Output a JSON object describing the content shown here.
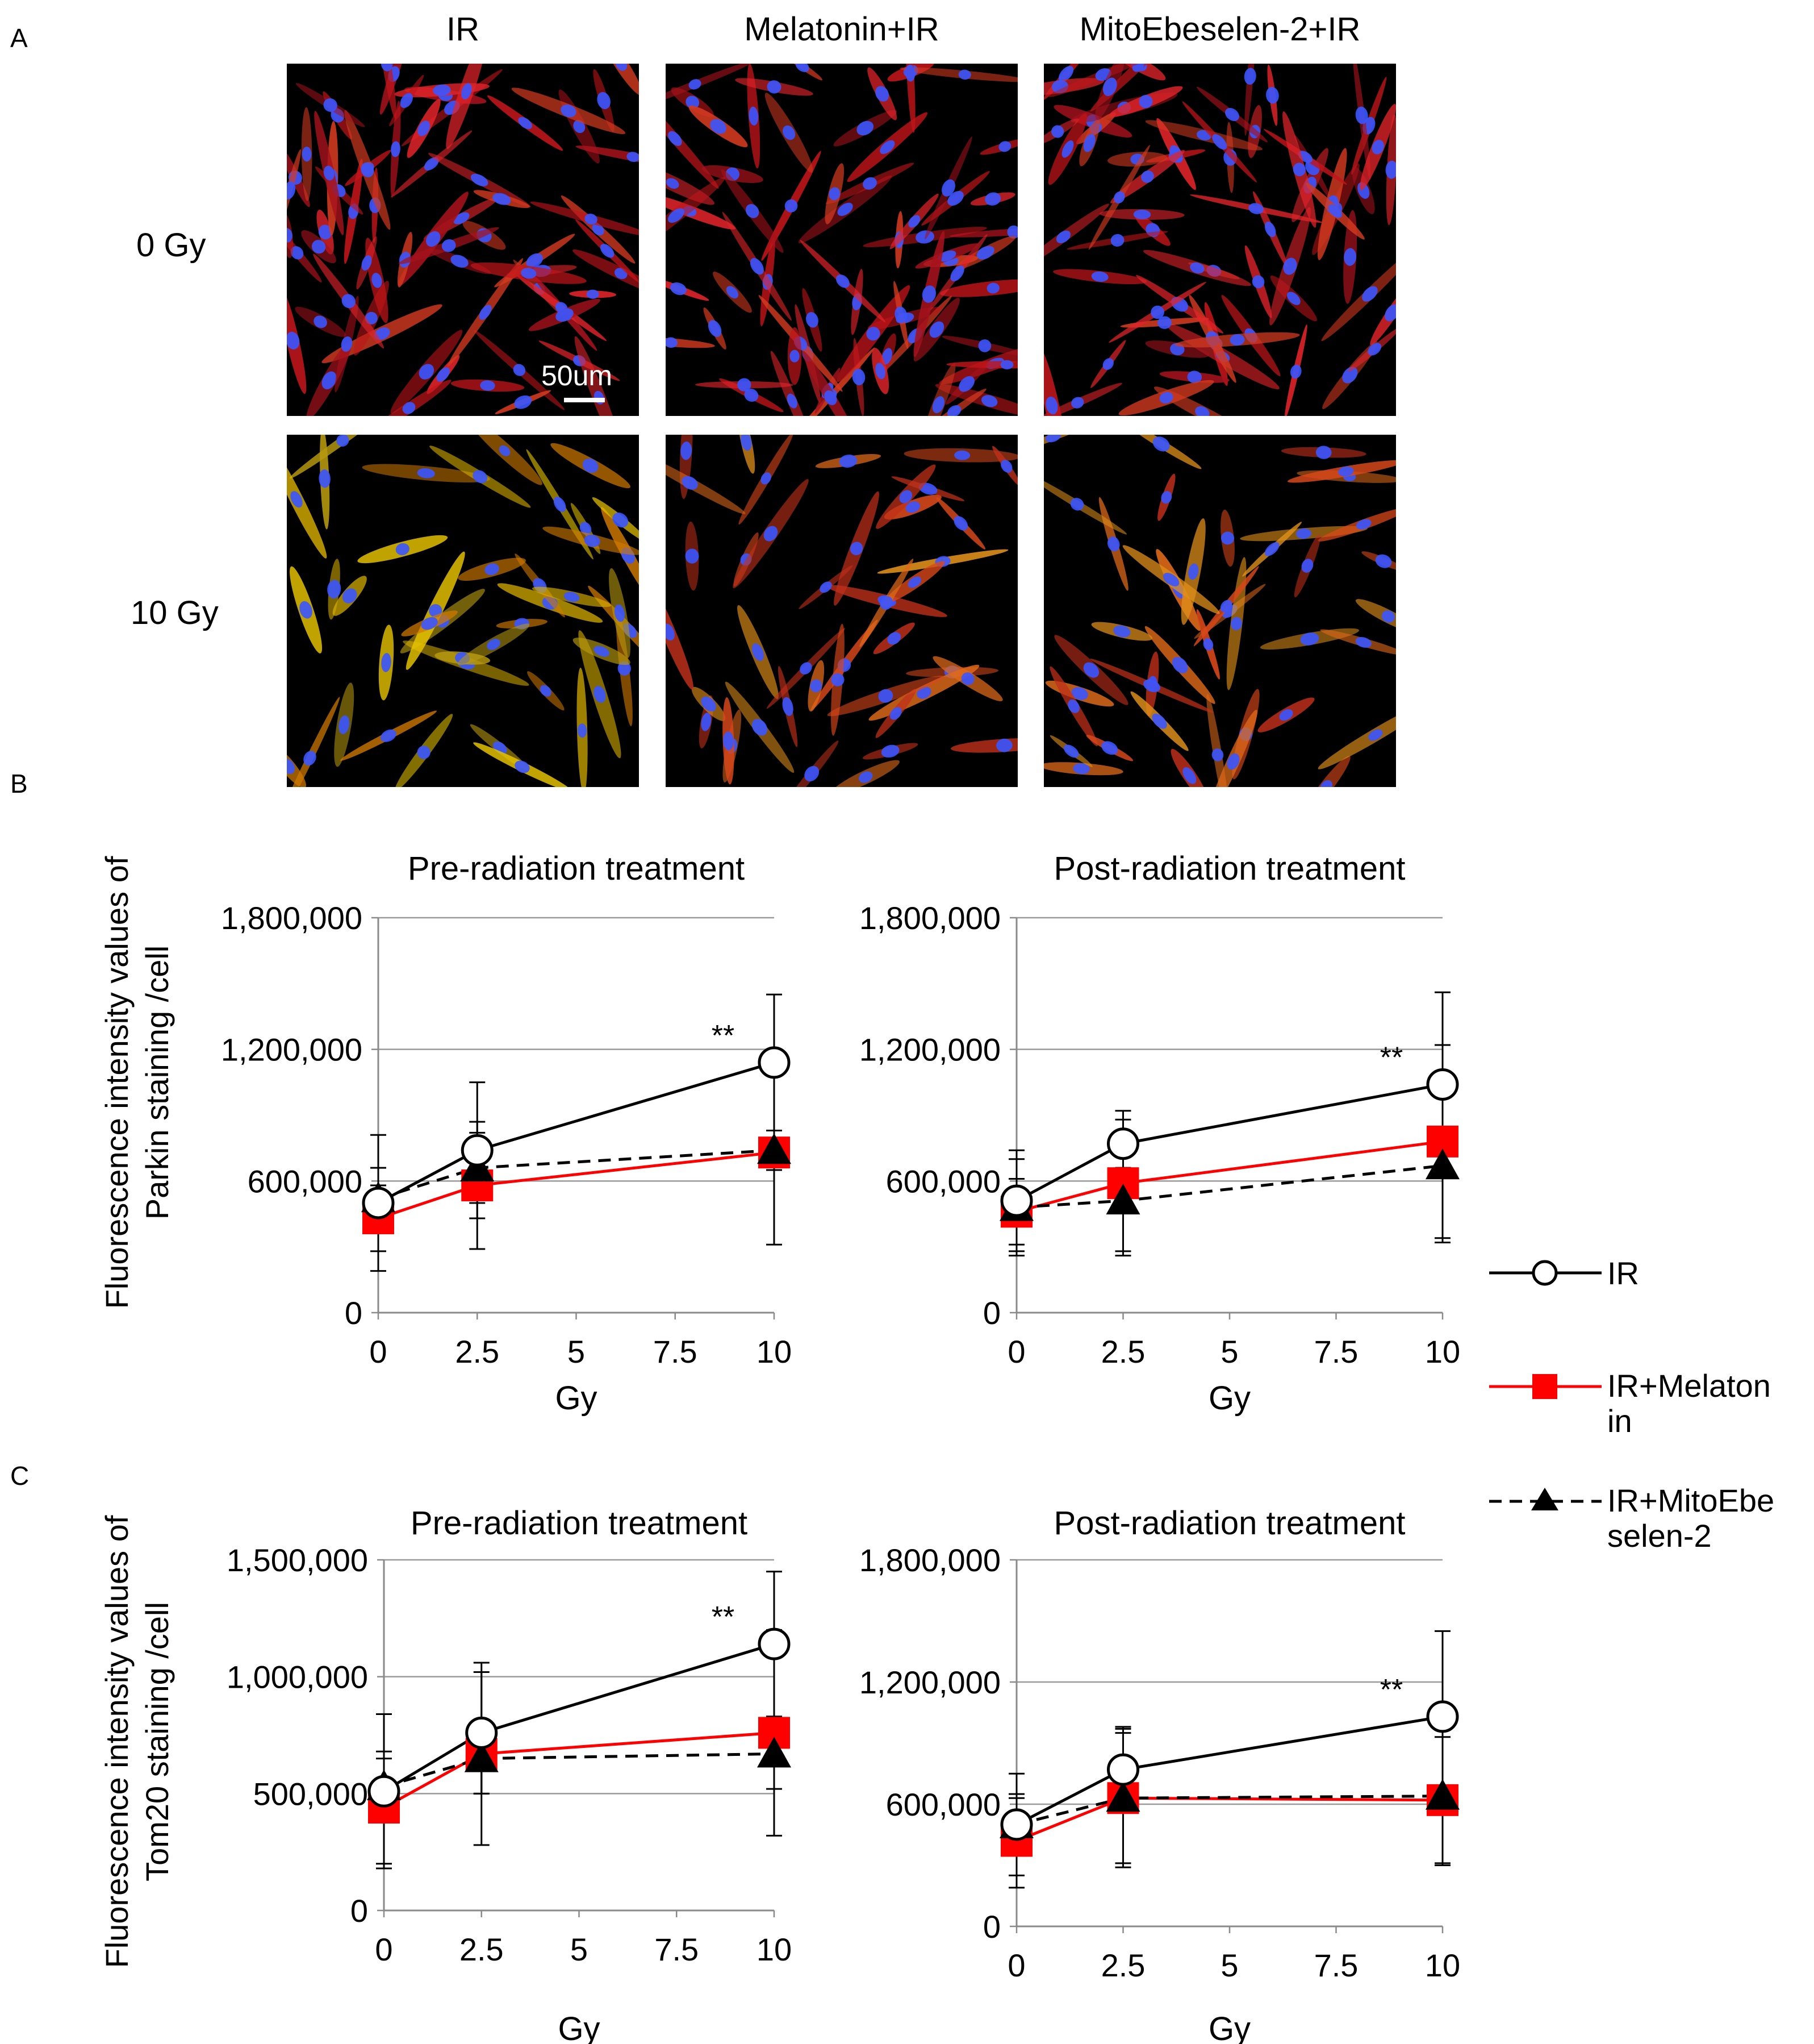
{
  "figure": {
    "panel_letters": [
      "A",
      "B",
      "C"
    ],
    "micro_columns": [
      "IR",
      "Melatonin+IR",
      "MitoEbeselen-2+IR"
    ],
    "micro_rows": [
      "0 Gy",
      "10 Gy"
    ],
    "scale_bar_label": "50um",
    "ylabel_B": [
      "Fluorescence intensity values of",
      "Parkin staining /cell"
    ],
    "ylabel_C": [
      "Fluorescence intensity values of",
      "Tom20 staining /cell"
    ]
  },
  "legend": [
    {
      "name": "IR",
      "lines": [
        "IR"
      ],
      "color": "#000000",
      "marker": "open-circle",
      "dash": false
    },
    {
      "name": "IR+Melatonin",
      "lines": [
        "IR+Melaton",
        "in"
      ],
      "color": "#ff0000",
      "marker": "square",
      "dash": false
    },
    {
      "name": "IR+MitoEbeselen-2",
      "lines": [
        "IR+MitoEbe",
        "selen-2"
      ],
      "color": "#000000",
      "marker": "triangle",
      "dash": true
    }
  ],
  "chart_data": [
    {
      "panel": "B",
      "type": "line",
      "title": "Pre-radiation treatment",
      "xlabel": "Gy",
      "ylabel": "Fluorescence intensity values of Parkin staining /cell",
      "xlim": [
        0,
        10
      ],
      "xticks": [
        "0",
        "2.5",
        "5",
        "7.5",
        "10"
      ],
      "ylim": [
        0,
        1800000
      ],
      "yticks": [
        "0",
        "600,000",
        "1,200,000",
        "1,800,000"
      ],
      "x": [
        0,
        2.5,
        10
      ],
      "annotation": "**",
      "series": [
        {
          "name": "IR",
          "values": [
            500000,
            740000,
            1140000
          ],
          "err": [
            310000,
            310000,
            310000
          ]
        },
        {
          "name": "IR+Melatonin",
          "values": [
            430000,
            580000,
            730000
          ],
          "err": [
            150000,
            290000,
            420000
          ]
        },
        {
          "name": "IR+MitoEbeselen-2",
          "values": [
            520000,
            660000,
            740000
          ],
          "err": [
            140000,
            160000,
            90000
          ]
        }
      ]
    },
    {
      "panel": "B",
      "type": "line",
      "title": "Post-radiation treatment",
      "xlabel": "Gy",
      "ylabel": "",
      "xlim": [
        0,
        10
      ],
      "xticks": [
        "0",
        "2.5",
        "5",
        "7.5",
        "10"
      ],
      "ylim": [
        0,
        1800000
      ],
      "yticks": [
        "0",
        "600,000",
        "1,200,000",
        "1,800,000"
      ],
      "x": [
        0,
        2.5,
        10
      ],
      "annotation": "**",
      "series": [
        {
          "name": "IR",
          "values": [
            510000,
            770000,
            1040000
          ],
          "err": [
            230000,
            110000,
            420000
          ]
        },
        {
          "name": "IR+Melatonin",
          "values": [
            460000,
            590000,
            780000
          ],
          "err": [
            150000,
            330000,
            440000
          ]
        },
        {
          "name": "IR+MitoEbeselen-2",
          "values": [
            480000,
            510000,
            670000
          ],
          "err": [
            220000,
            230000,
            350000
          ]
        }
      ]
    },
    {
      "panel": "C",
      "type": "line",
      "title": "Pre-radiation treatment",
      "xlabel": "Gy",
      "ylabel": "Fluorescence intensity values of Tom20 staining /cell",
      "xlim": [
        0,
        10
      ],
      "xticks": [
        "0",
        "2.5",
        "5",
        "7.5",
        "10"
      ],
      "ylim": [
        0,
        1500000
      ],
      "yticks": [
        "0",
        "500,000",
        "1,000,000",
        "1,500,000"
      ],
      "x": [
        0,
        2.5,
        10
      ],
      "annotation": "**",
      "series": [
        {
          "name": "IR",
          "values": [
            510000,
            760000,
            1140000
          ],
          "err": [
            330000,
            260000,
            310000
          ]
        },
        {
          "name": "IR+Melatonin",
          "values": [
            440000,
            670000,
            760000
          ],
          "err": [
            240000,
            390000,
            440000
          ]
        },
        {
          "name": "IR+MitoEbeselen-2",
          "values": [
            530000,
            650000,
            670000
          ],
          "err": [
            120000,
            150000,
            150000
          ]
        }
      ]
    },
    {
      "panel": "C",
      "type": "line",
      "title": "Post-radiation treatment",
      "xlabel": "Gy",
      "ylabel": "",
      "xlim": [
        0,
        10
      ],
      "xticks": [
        "0",
        "2.5",
        "5",
        "7.5",
        "10"
      ],
      "ylim": [
        0,
        1800000
      ],
      "yticks": [
        "0",
        "600,000",
        "1,200,000",
        "1,800,000"
      ],
      "x": [
        0,
        2.5,
        10
      ],
      "annotation": "**",
      "series": [
        {
          "name": "IR",
          "values": [
            500000,
            770000,
            1030000
          ],
          "err": [
            250000,
            210000,
            420000
          ]
        },
        {
          "name": "IR+Melatonin",
          "values": [
            420000,
            630000,
            620000
          ],
          "err": [
            230000,
            320000,
            310000
          ]
        },
        {
          "name": "IR+MitoEbeselen-2",
          "values": [
            500000,
            630000,
            640000
          ],
          "err": [
            130000,
            340000,
            340000
          ]
        }
      ]
    }
  ]
}
